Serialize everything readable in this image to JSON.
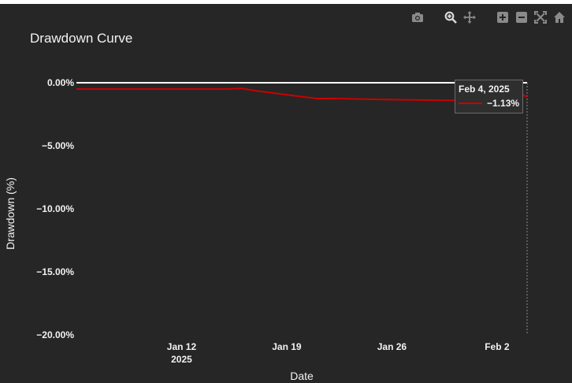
{
  "colors": {
    "background": "#262626",
    "text": "#f2f2f2",
    "zero_line": "#ffffff",
    "series": "#cc0000",
    "modebar_icon": "#8a8a8a"
  },
  "modebar": {
    "icons": [
      "camera-icon",
      "zoom-icon",
      "pan-icon",
      "zoom-in-icon",
      "zoom-out-icon",
      "autoscale-icon",
      "reset-axes-icon"
    ]
  },
  "chart_data": {
    "type": "line",
    "title": "Drawdown Curve",
    "xlabel": "Date",
    "ylabel": "Drawdown (%)",
    "ylim": [
      -20,
      0
    ],
    "xlim": [
      "2025-01-05",
      "2025-02-04"
    ],
    "y_ticks": [
      {
        "value": 0,
        "label": "0.00%"
      },
      {
        "value": -5,
        "label": "−5.00%"
      },
      {
        "value": -10,
        "label": "−10.00%"
      },
      {
        "value": -15,
        "label": "−15.00%"
      },
      {
        "value": -20,
        "label": "−20.00%"
      }
    ],
    "x_ticks": [
      {
        "date": "2025-01-12",
        "label": "Jan 12",
        "sublabel": "2025"
      },
      {
        "date": "2025-01-19",
        "label": "Jan 19",
        "sublabel": ""
      },
      {
        "date": "2025-01-26",
        "label": "Jan 26",
        "sublabel": ""
      },
      {
        "date": "2025-02-02",
        "label": "Feb 2",
        "sublabel": ""
      }
    ],
    "grid": false,
    "zero_line": true,
    "series": [
      {
        "name": "",
        "color": "#cc0000",
        "x": [
          "2025-01-05",
          "2025-01-06",
          "2025-01-07",
          "2025-01-08",
          "2025-01-09",
          "2025-01-10",
          "2025-01-11",
          "2025-01-12",
          "2025-01-13",
          "2025-01-14",
          "2025-01-15",
          "2025-01-16",
          "2025-01-17",
          "2025-01-18",
          "2025-01-19",
          "2025-01-20",
          "2025-01-21",
          "2025-01-22",
          "2025-01-23",
          "2025-01-24",
          "2025-01-25",
          "2025-01-26",
          "2025-01-27",
          "2025-01-28",
          "2025-01-29",
          "2025-01-30",
          "2025-01-31",
          "2025-02-01",
          "2025-02-02",
          "2025-02-03",
          "2025-02-04"
        ],
        "y": [
          -0.5,
          -0.5,
          -0.5,
          -0.5,
          -0.5,
          -0.5,
          -0.5,
          -0.5,
          -0.5,
          -0.5,
          -0.5,
          -0.45,
          -0.65,
          -0.8,
          -0.95,
          -1.1,
          -1.25,
          -1.25,
          -1.27,
          -1.3,
          -1.32,
          -1.34,
          -1.35,
          -1.37,
          -1.38,
          -1.4,
          -1.4,
          -1.4,
          -0.7,
          -0.5,
          -1.13
        ]
      }
    ],
    "hover": {
      "date_label": "Feb 4, 2025",
      "value_label": "−1.13%",
      "date": "2025-02-04",
      "value": -1.13
    }
  }
}
